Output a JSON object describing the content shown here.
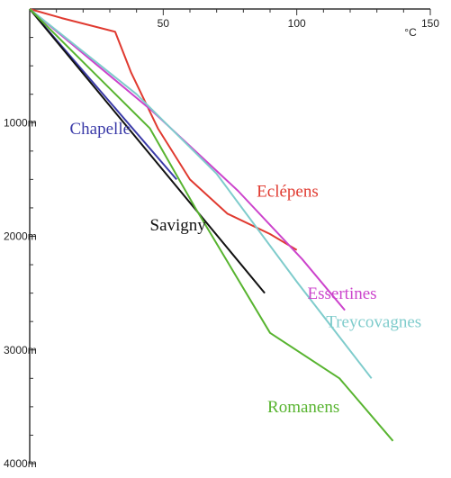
{
  "chart_data": {
    "type": "line",
    "title": "",
    "xlabel": "°C",
    "ylabel": "",
    "x_axis_position": "top",
    "y_inverted": true,
    "xlim": [
      0,
      150
    ],
    "ylim": [
      0,
      4000
    ],
    "x_ticks": [
      0,
      50,
      100,
      150
    ],
    "x_tick_labels": [
      "",
      "50",
      "100",
      "150"
    ],
    "y_ticks": [
      0,
      1000,
      2000,
      3000,
      4000
    ],
    "y_tick_labels": [
      "",
      "1000m",
      "2000m",
      "3000m",
      "4000m"
    ],
    "grid": false,
    "series": [
      {
        "name": "Chapelle",
        "color": "#3a3aa8",
        "points": [
          [
            0,
            0
          ],
          [
            55,
            1500
          ]
        ]
      },
      {
        "name": "Savigny",
        "color": "#111111",
        "points": [
          [
            0,
            0
          ],
          [
            88,
            2500
          ]
        ]
      },
      {
        "name": "Eclépens",
        "color": "#e03a30",
        "points": [
          [
            0,
            0
          ],
          [
            12,
            80
          ],
          [
            32,
            200
          ],
          [
            38,
            560
          ],
          [
            48,
            1050
          ],
          [
            60,
            1500
          ],
          [
            74,
            1800
          ],
          [
            90,
            1980
          ],
          [
            100,
            2120
          ]
        ]
      },
      {
        "name": "Essertines",
        "color": "#cc44cc",
        "points": [
          [
            0,
            0
          ],
          [
            46,
            900
          ],
          [
            78,
            1600
          ],
          [
            102,
            2200
          ],
          [
            118,
            2650
          ]
        ]
      },
      {
        "name": "Treycovagnes",
        "color": "#7fcccc",
        "points": [
          [
            0,
            0
          ],
          [
            40,
            750
          ],
          [
            70,
            1450
          ],
          [
            100,
            2400
          ],
          [
            128,
            3250
          ]
        ]
      },
      {
        "name": "Romanens",
        "color": "#58b430",
        "points": [
          [
            0,
            0
          ],
          [
            45,
            1050
          ],
          [
            62,
            1750
          ],
          [
            90,
            2850
          ],
          [
            116,
            3250
          ],
          [
            136,
            3800
          ]
        ]
      }
    ]
  }
}
